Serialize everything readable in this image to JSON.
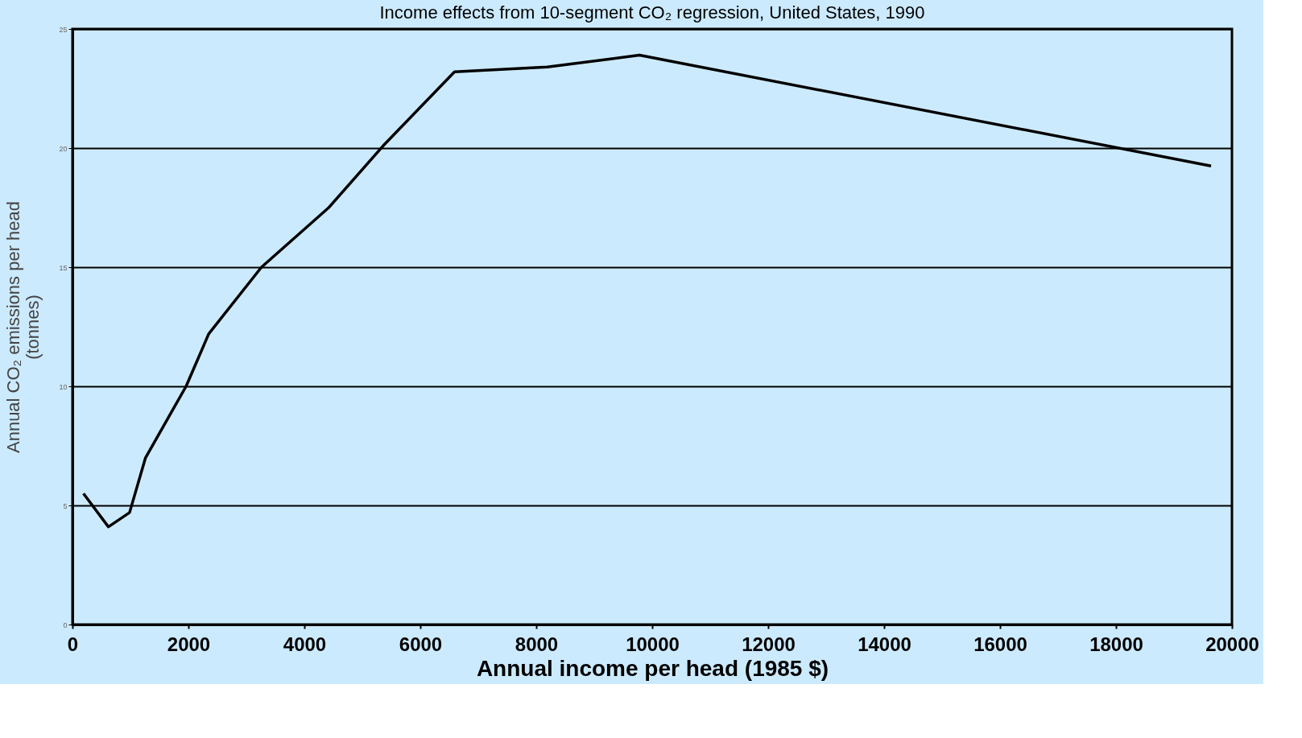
{
  "chart_data": {
    "type": "line",
    "title": "Income effects from 10-segment CO₂ regression, United States, 1990",
    "xlabel": "Annual income per head (1985 $)",
    "ylabel": "Annual CO₂ emissions  per head\n(tonnes)",
    "x": [
      190,
      620,
      985,
      1260,
      1960,
      2350,
      3260,
      4420,
      5360,
      6590,
      8190,
      9780,
      19640
    ],
    "series": [
      {
        "color": "#000000",
        "values": [
          5.5,
          4.1,
          4.7,
          7.0,
          10.0,
          12.2,
          15.0,
          17.5,
          20.1,
          23.2,
          23.4,
          23.9,
          19.25
        ]
      }
    ],
    "xlim": [
      0,
      20000
    ],
    "xticks": [
      0,
      2000,
      4000,
      6000,
      8000,
      10000,
      12000,
      14000,
      16000,
      18000,
      20000
    ],
    "ylim": [
      0,
      25
    ],
    "yticks": [
      0,
      5,
      10,
      15,
      20,
      25
    ],
    "grid": "y",
    "marker": "none",
    "line_style": "solid"
  }
}
